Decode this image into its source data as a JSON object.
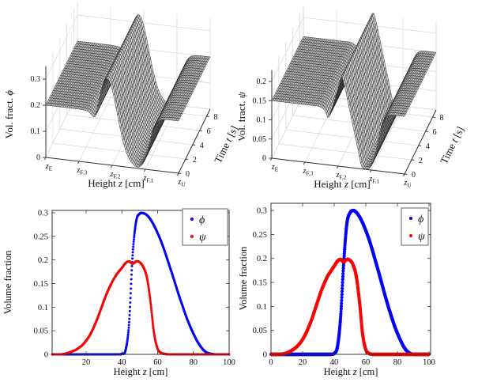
{
  "figure": {
    "background": "#ffffff",
    "kind": "2x2 volume-fraction simulation figure"
  },
  "colors": {
    "phi": "#0505f5",
    "psi": "#f50505",
    "surface_face": "#d4d4d4",
    "surface_edge": "#1c1c1c",
    "wall_grid": "#d8d8d8",
    "axis": "#303030",
    "text": "#111111",
    "legend_border": "#7f7f7f"
  },
  "chart_data": [
    {
      "type": "surface",
      "position": "top-left",
      "vlabel_parts": [
        [
          "Vol. fract. ",
          0
        ],
        [
          "ϕ",
          1
        ]
      ],
      "xlabel_parts": [
        [
          "Height ",
          0
        ],
        [
          "z",
          1
        ],
        [
          " [cm]",
          0
        ]
      ],
      "tlabel_parts": [
        [
          "Time ",
          0
        ],
        [
          "t",
          1
        ],
        [
          " [s]",
          0
        ]
      ],
      "x_ticks": [
        [
          "z",
          "E"
        ],
        [
          "z",
          "F,3"
        ],
        [
          "z",
          "F,2"
        ],
        [
          "z",
          "F,1"
        ],
        [
          "z",
          "U"
        ]
      ],
      "t_ticks": [
        0,
        2,
        4,
        6,
        8
      ],
      "t_max": 9,
      "v_ticks": [
        0,
        0.1,
        0.2,
        0.3
      ],
      "v_top": 0.35,
      "constant_in_time": true,
      "profile_z_norm_step": 0.025,
      "profile_v": [
        0.2,
        0.2,
        0.2,
        0.2,
        0.2,
        0.2,
        0.2,
        0.2,
        0.2,
        0.2,
        0.2,
        0.199,
        0.198,
        0.194,
        0.181,
        0.182,
        0.245,
        0.298,
        0.327,
        0.324,
        0.289,
        0.233,
        0.169,
        0.111,
        0.065,
        0.035,
        0.017,
        0.007,
        0.005,
        0.016,
        0.041,
        0.089,
        0.143,
        0.177,
        0.192,
        0.197,
        0.199,
        0.2,
        0.2,
        0.2,
        0.2
      ]
    },
    {
      "type": "surface",
      "position": "top-right",
      "vlabel_parts": [
        [
          "Vol. fract. ",
          0
        ],
        [
          "ψ",
          1
        ]
      ],
      "xlabel_parts": [
        [
          "Height ",
          0
        ],
        [
          "z",
          1
        ],
        [
          " [cm]",
          0
        ]
      ],
      "tlabel_parts": [
        [
          "Time ",
          0
        ],
        [
          "t",
          1
        ],
        [
          " [s]",
          0
        ]
      ],
      "x_ticks": [
        [
          "z",
          "E"
        ],
        [
          "z",
          "F,3"
        ],
        [
          "z",
          "F,2"
        ],
        [
          "z",
          "F,1"
        ],
        [
          "z",
          "U"
        ]
      ],
      "t_ticks": [
        0,
        2,
        4,
        6,
        8
      ],
      "t_max": 9,
      "v_ticks": [
        0,
        0.05,
        0.1,
        0.15,
        0.2
      ],
      "v_top": 0.23,
      "constant_in_time": true,
      "profile_z_norm_step": 0.025,
      "profile_v": [
        0.15,
        0.15,
        0.15,
        0.15,
        0.15,
        0.15,
        0.15,
        0.15,
        0.15,
        0.15,
        0.15,
        0.15,
        0.15,
        0.15,
        0.15,
        0.147,
        0.141,
        0.123,
        0.144,
        0.174,
        0.204,
        0.234,
        0.208,
        0.168,
        0.128,
        0.088,
        0.048,
        0.008,
        0.001,
        0.002,
        0.011,
        0.033,
        0.075,
        0.117,
        0.139,
        0.147,
        0.149,
        0.15,
        0.15,
        0.15,
        0.15
      ]
    },
    {
      "type": "scatter",
      "position": "bottom-left",
      "xlabel_parts": [
        [
          "Height ",
          0
        ],
        [
          "z",
          1
        ],
        [
          " [cm]",
          0
        ]
      ],
      "ylabel": "Volume fraction",
      "xlim": [
        1,
        100
      ],
      "ylim": [
        0,
        0.3
      ],
      "x_ticks": [
        20,
        40,
        60,
        80,
        100
      ],
      "y_ticks": [
        0,
        0.05,
        0.1,
        0.15,
        0.2,
        0.25,
        0.3
      ],
      "legend_position": "northeast",
      "marker_style": "sparse-dots",
      "series": [
        {
          "name": "ϕ",
          "color_key": "phi",
          "z_start": 0,
          "z_step": 2,
          "values": [
            0,
            0,
            0,
            0,
            0,
            0,
            0,
            0,
            0,
            0,
            0,
            0,
            0,
            0,
            0,
            0,
            0,
            0,
            0,
            0,
            0.001,
            0.008,
            0.064,
            0.21,
            0.282,
            0.298,
            0.299,
            0.295,
            0.286,
            0.273,
            0.257,
            0.239,
            0.218,
            0.195,
            0.172,
            0.148,
            0.124,
            0.102,
            0.08,
            0.061,
            0.044,
            0.029,
            0.017,
            0.008,
            0.003,
            0.001,
            0,
            0,
            0,
            0,
            0
          ]
        },
        {
          "name": "ψ",
          "color_key": "psi",
          "z_start": 0,
          "z_step": 2,
          "values": [
            0,
            0,
            0,
            0,
            0.001,
            0.003,
            0.006,
            0.009,
            0.014,
            0.02,
            0.029,
            0.04,
            0.055,
            0.073,
            0.093,
            0.114,
            0.133,
            0.149,
            0.163,
            0.174,
            0.183,
            0.193,
            0.197,
            0.192,
            0.197,
            0.195,
            0.185,
            0.163,
            0.112,
            0.045,
            0.012,
            0.003,
            0.001,
            0,
            0,
            0,
            0,
            0,
            0,
            0,
            0,
            0,
            0,
            0,
            0,
            0,
            0,
            0,
            0,
            0,
            0
          ]
        }
      ]
    },
    {
      "type": "scatter",
      "position": "bottom-right",
      "xlabel_parts": [
        [
          "Height ",
          0
        ],
        [
          "z",
          1
        ],
        [
          " [cm]",
          0
        ]
      ],
      "ylabel": "Volume fraction",
      "xlim": [
        0,
        100
      ],
      "ylim": [
        0,
        0.3
      ],
      "x_ticks": [
        0,
        20,
        40,
        60,
        80,
        100
      ],
      "y_ticks": [
        0,
        0.05,
        0.1,
        0.15,
        0.2,
        0.25,
        0.3
      ],
      "legend_position": "northeast",
      "marker_style": "dense-dots",
      "series": [
        {
          "name": "ϕ",
          "color_key": "phi",
          "z_start": 0,
          "z_step": 2,
          "values": [
            0,
            0,
            0,
            0,
            0,
            0,
            0,
            0,
            0,
            0,
            0,
            0,
            0,
            0,
            0,
            0,
            0,
            0,
            0,
            0,
            0.002,
            0.015,
            0.075,
            0.19,
            0.272,
            0.295,
            0.3,
            0.296,
            0.287,
            0.274,
            0.258,
            0.24,
            0.219,
            0.196,
            0.173,
            0.149,
            0.125,
            0.102,
            0.081,
            0.061,
            0.044,
            0.029,
            0.016,
            0.007,
            0.002,
            0,
            0,
            0,
            0,
            0,
            0
          ]
        },
        {
          "name": "ψ",
          "color_key": "psi",
          "z_start": 0,
          "z_step": 2,
          "values": [
            0,
            0,
            0,
            0,
            0.001,
            0.003,
            0.006,
            0.01,
            0.015,
            0.022,
            0.031,
            0.043,
            0.058,
            0.075,
            0.095,
            0.115,
            0.134,
            0.15,
            0.164,
            0.174,
            0.184,
            0.194,
            0.198,
            0.193,
            0.198,
            0.196,
            0.186,
            0.162,
            0.11,
            0.042,
            0.01,
            0.002,
            0,
            0,
            0,
            0,
            0,
            0,
            0,
            0,
            0,
            0,
            0,
            0,
            0,
            0,
            0,
            0,
            0,
            0,
            0
          ]
        }
      ]
    }
  ]
}
